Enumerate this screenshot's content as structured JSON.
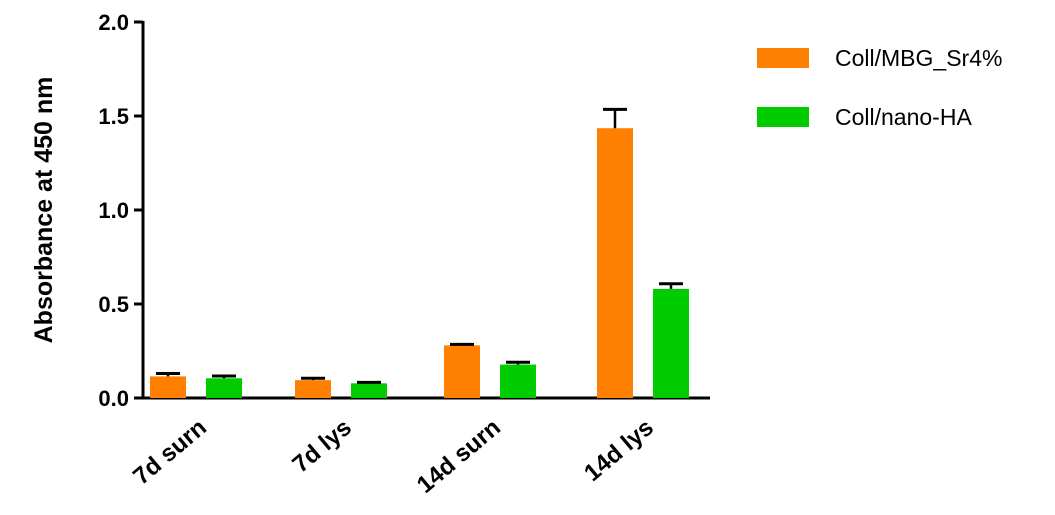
{
  "chart_data": {
    "type": "bar",
    "title": "",
    "xlabel": "",
    "ylabel": "Absorbance at 450 nm",
    "ylim": [
      0,
      2.0
    ],
    "yticks": [
      "0.0",
      "0.5",
      "1.0",
      "1.5",
      "2.0"
    ],
    "ytick_values": [
      0,
      0.5,
      1.0,
      1.5,
      2.0
    ],
    "categories": [
      "7d surn",
      "7d lys",
      "14d surn",
      "14d lys"
    ],
    "series": [
      {
        "name": "Coll/MBG_Sr4%",
        "color": "#FF7F00",
        "values": [
          0.115,
          0.095,
          0.28,
          1.435
        ],
        "errors": [
          0.015,
          0.01,
          0.005,
          0.1
        ]
      },
      {
        "name": "Coll/nano-HA",
        "color": "#00CC00",
        "values": [
          0.105,
          0.078,
          0.178,
          0.58
        ],
        "errors": [
          0.012,
          0.005,
          0.012,
          0.028
        ]
      }
    ],
    "legend_position": "top-right",
    "grid": false
  }
}
